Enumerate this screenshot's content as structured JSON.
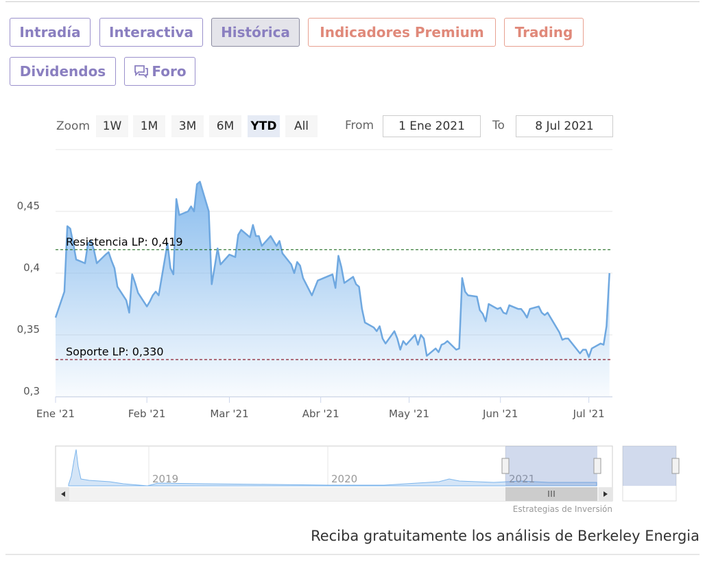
{
  "tabs": [
    "Intradía",
    "Interactiva",
    "Histórica",
    "Indicadores Premium",
    "Trading",
    "Dividendos",
    "Foro"
  ],
  "zoom": {
    "label": "Zoom",
    "buttons": [
      "1W",
      "1M",
      "3M",
      "6M",
      "YTD",
      "All"
    ]
  },
  "range": {
    "from_label": "From",
    "from": "1 Ene 2021",
    "to_label": "To",
    "to": "8 Jul 2021"
  },
  "chart_data": {
    "type": "area",
    "xlim": [
      0,
      189
    ],
    "xticks": [
      {
        "value": 0,
        "label": "Ene '21"
      },
      {
        "value": 31,
        "label": "Feb '21"
      },
      {
        "value": 59,
        "label": "Mar '21"
      },
      {
        "value": 90,
        "label": "Abr '21"
      },
      {
        "value": 120,
        "label": "May '21"
      },
      {
        "value": 151,
        "label": "Jun '21"
      },
      {
        "value": 181,
        "label": "Jul '21"
      }
    ],
    "ylim": [
      0.3,
      0.5
    ],
    "yticks": [
      {
        "value": 0.3,
        "label": "0,3"
      },
      {
        "value": 0.35,
        "label": "0,35"
      },
      {
        "value": 0.4,
        "label": "0,4"
      },
      {
        "value": 0.45,
        "label": "0,45"
      }
    ],
    "grid": true,
    "color": "#6fa8e0",
    "x": [
      0,
      3,
      4,
      5,
      6,
      7,
      10,
      11,
      12,
      13,
      14,
      17,
      18,
      19,
      20,
      21,
      24,
      25,
      26,
      27,
      28,
      31,
      32,
      33,
      34,
      35,
      38,
      39,
      40,
      41,
      42,
      45,
      46,
      47,
      48,
      49,
      52,
      53,
      54,
      55,
      56,
      59,
      60,
      61,
      62,
      63,
      66,
      67,
      68,
      69,
      70,
      73,
      74,
      75,
      76,
      77,
      80,
      81,
      82,
      83,
      84,
      87,
      88,
      89,
      90,
      91,
      94,
      95,
      96,
      97,
      98,
      101,
      102,
      103,
      104,
      105,
      108,
      109,
      110,
      111,
      112,
      115,
      116,
      117,
      118,
      119,
      122,
      123,
      124,
      125,
      126,
      129,
      130,
      131,
      132,
      133,
      136,
      137,
      138,
      139,
      140,
      143,
      144,
      145,
      146,
      147,
      150,
      151,
      152,
      153,
      154,
      157,
      158,
      159,
      160,
      161,
      164,
      165,
      166,
      167,
      168,
      171,
      172,
      173,
      174,
      175,
      178,
      179,
      180,
      181,
      182,
      185,
      186,
      187,
      188
    ],
    "values": [
      0.364,
      0.385,
      0.438,
      0.436,
      0.424,
      0.411,
      0.408,
      0.424,
      0.426,
      0.419,
      0.408,
      0.415,
      0.417,
      0.41,
      0.404,
      0.389,
      0.378,
      0.368,
      0.399,
      0.392,
      0.384,
      0.373,
      0.377,
      0.382,
      0.385,
      0.382,
      0.424,
      0.404,
      0.399,
      0.46,
      0.447,
      0.45,
      0.454,
      0.45,
      0.472,
      0.474,
      0.45,
      0.391,
      0.405,
      0.42,
      0.407,
      0.415,
      0.414,
      0.413,
      0.431,
      0.435,
      0.429,
      0.439,
      0.43,
      0.43,
      0.422,
      0.43,
      0.426,
      0.422,
      0.426,
      0.416,
      0.407,
      0.4,
      0.409,
      0.406,
      0.396,
      0.382,
      0.388,
      0.394,
      0.395,
      0.396,
      0.399,
      0.388,
      0.414,
      0.405,
      0.392,
      0.397,
      0.391,
      0.389,
      0.371,
      0.36,
      0.356,
      0.353,
      0.357,
      0.347,
      0.343,
      0.353,
      0.347,
      0.338,
      0.345,
      0.342,
      0.35,
      0.342,
      0.35,
      0.347,
      0.333,
      0.339,
      0.336,
      0.342,
      0.343,
      0.345,
      0.338,
      0.339,
      0.396,
      0.385,
      0.382,
      0.381,
      0.37,
      0.367,
      0.361,
      0.375,
      0.371,
      0.372,
      0.368,
      0.367,
      0.374,
      0.371,
      0.371,
      0.368,
      0.364,
      0.371,
      0.373,
      0.368,
      0.366,
      0.368,
      0.364,
      0.352,
      0.346,
      0.347,
      0.347,
      0.344,
      0.335,
      0.338,
      0.338,
      0.332,
      0.339,
      0.343,
      0.342,
      0.357,
      0.4
    ],
    "plot_lines": [
      {
        "label": "Resistencia LP: 0,419",
        "value": 0.419,
        "color": "#1e6b1e"
      },
      {
        "label": "Soporte LP: 0,330",
        "value": 0.33,
        "color": "#8b1a2b"
      }
    ]
  },
  "navigator": {
    "years": [
      "2019",
      "2020",
      "2021"
    ],
    "credits": "Estrategias de Inversión"
  },
  "footer": "Reciba gratuitamente los análisis de Berkeley Energia"
}
